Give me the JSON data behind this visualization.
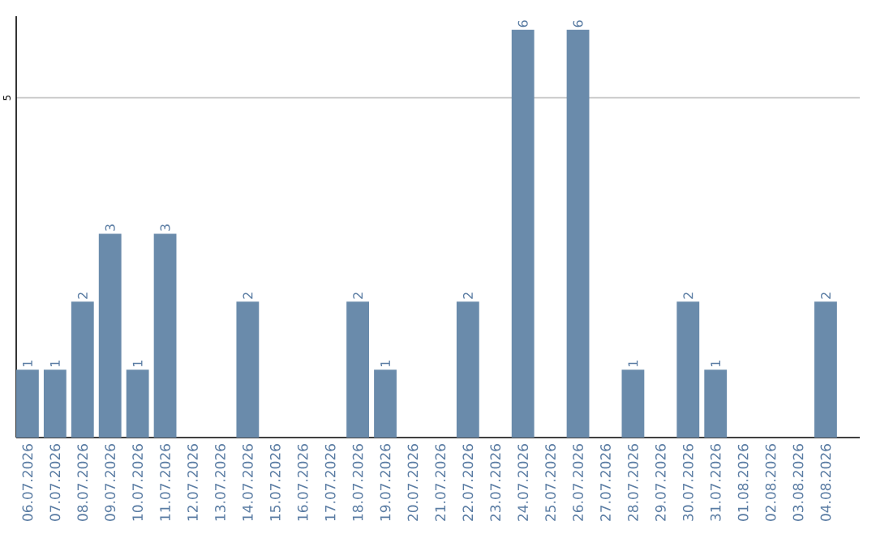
{
  "chart_data": {
    "type": "bar",
    "categories": [
      "06.07.2026",
      "07.07.2026",
      "08.07.2026",
      "09.07.2026",
      "10.07.2026",
      "11.07.2026",
      "12.07.2026",
      "13.07.2026",
      "14.07.2026",
      "15.07.2026",
      "16.07.2026",
      "17.07.2026",
      "18.07.2026",
      "19.07.2026",
      "20.07.2026",
      "21.07.2026",
      "22.07.2026",
      "23.07.2026",
      "24.07.2026",
      "25.07.2026",
      "26.07.2026",
      "27.07.2026",
      "28.07.2026",
      "29.07.2026",
      "30.07.2026",
      "31.07.2026",
      "01.08.2026",
      "02.08.2026",
      "03.08.2026",
      "04.08.2026"
    ],
    "values": [
      1,
      1,
      2,
      3,
      1,
      3,
      0,
      0,
      2,
      0,
      0,
      0,
      2,
      1,
      0,
      0,
      2,
      0,
      6,
      0,
      6,
      0,
      1,
      0,
      2,
      1,
      0,
      0,
      0,
      2
    ],
    "value_labels": [
      "1",
      "1",
      "2",
      "3",
      "1",
      "3",
      null,
      null,
      "2",
      null,
      null,
      null,
      "2",
      "1",
      null,
      null,
      "2",
      null,
      "6",
      null,
      "6",
      null,
      "1",
      null,
      "2",
      "1",
      null,
      null,
      null,
      "2"
    ],
    "color": "#6a8bab",
    "ylim": [
      0,
      6.2
    ],
    "yticks": [
      5
    ],
    "grid": "y"
  }
}
